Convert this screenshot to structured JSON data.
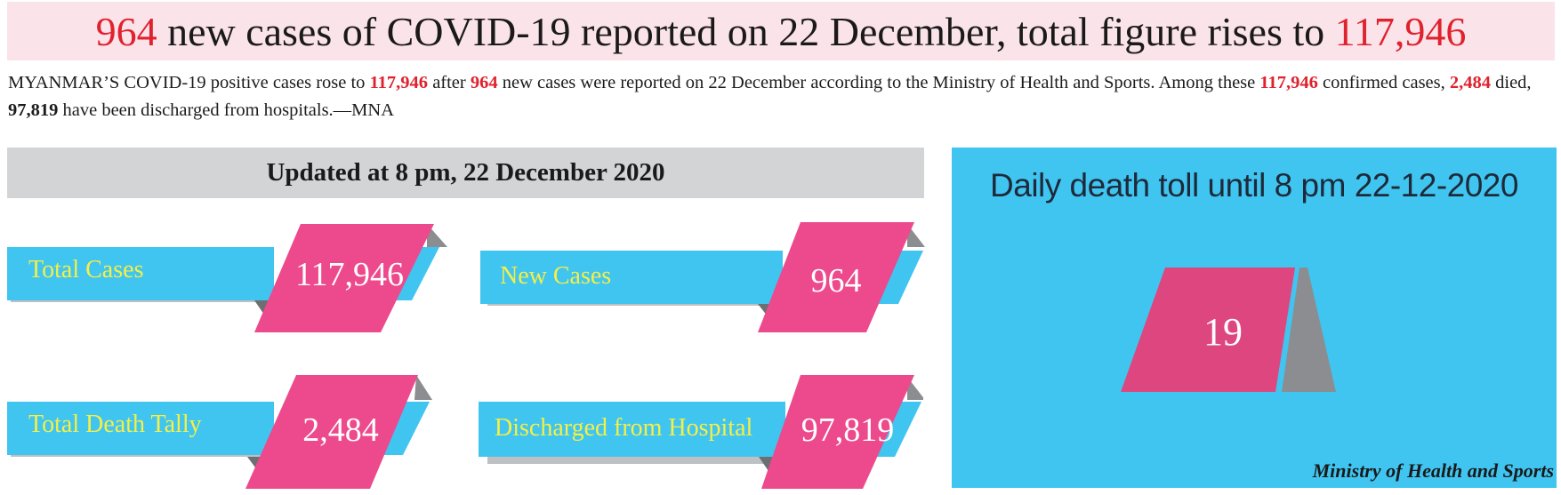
{
  "headline": {
    "new_cases": "964",
    "mid": " new cases of COVID-19 reported on 22 December, total figure rises to ",
    "total": "117,946"
  },
  "intro": {
    "p1": "MYANMAR’S COVID-19 positive cases rose to ",
    "total": "117,946",
    "p2": " after ",
    "new": "964",
    "p3": " new cases were reported on 22 December according to the Ministry of Health and Sports. Among these ",
    "total2": "117,946",
    "p4": " confirmed cases, ",
    "deaths": "2,484",
    "p5": " died, ",
    "discharged": "97,819",
    "p6": " have been discharged from hospitals.—MNA"
  },
  "update_banner": "Updated at 8 pm, 22 December 2020",
  "stats": [
    {
      "label": "Total Cases",
      "value": "117,946"
    },
    {
      "label": "New Cases",
      "value": "964"
    },
    {
      "label": "Total Death Tally",
      "value": "2,484"
    },
    {
      "label": "Discharged from Hospital",
      "value": "97,819"
    }
  ],
  "daily_death": {
    "title": "Daily death toll until 8 pm 22-12-2020",
    "value": "19"
  },
  "source": "Ministry of Health and Sports",
  "colors": {
    "accent_red": "#e0222e",
    "pink": "#ec4a8c",
    "blue": "#40c5f1",
    "gray": "#8c8d90",
    "label_yellow": "#f6ef45"
  }
}
